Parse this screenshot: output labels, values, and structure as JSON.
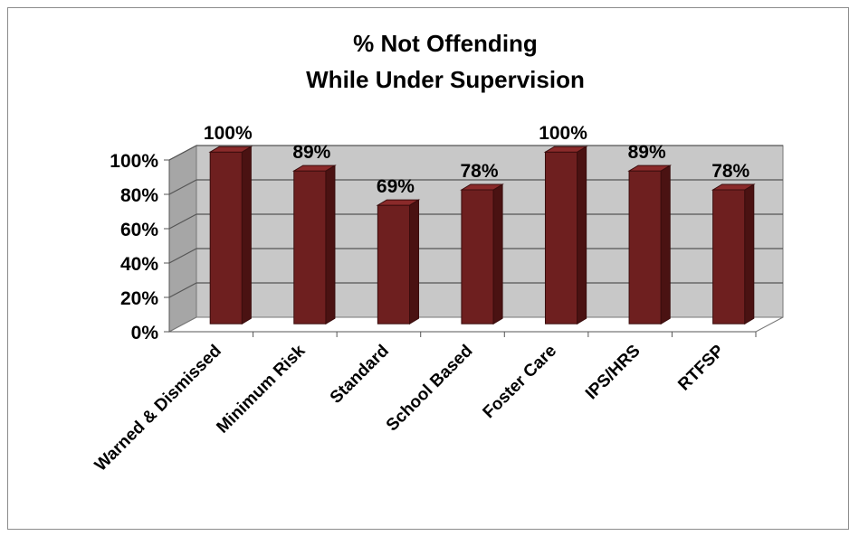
{
  "chart_data": {
    "type": "bar",
    "title_lines": [
      "% Not Offending",
      "While Under Supervision"
    ],
    "categories": [
      "Warned & Dismissed",
      "Minimum Risk",
      "Standard",
      "School Based",
      "Foster Care",
      "IPS/HRS",
      "RTFSP"
    ],
    "values": [
      100,
      89,
      69,
      78,
      100,
      89,
      78
    ],
    "data_labels": [
      "100%",
      "89%",
      "69%",
      "78%",
      "100%",
      "89%",
      "78%"
    ],
    "yticks": [
      "0%",
      "20%",
      "40%",
      "60%",
      "80%",
      "100%"
    ],
    "ylim": [
      0,
      100
    ],
    "grid": true,
    "three_d": true,
    "colors": {
      "bar_front": "#6e1f1f",
      "bar_side": "#4a1212",
      "bar_top": "#8a2a2a",
      "wall": "#c8c8c8",
      "side_wall": "#a6a6a6",
      "floor": "#ffffff",
      "grid": "#555555"
    }
  }
}
